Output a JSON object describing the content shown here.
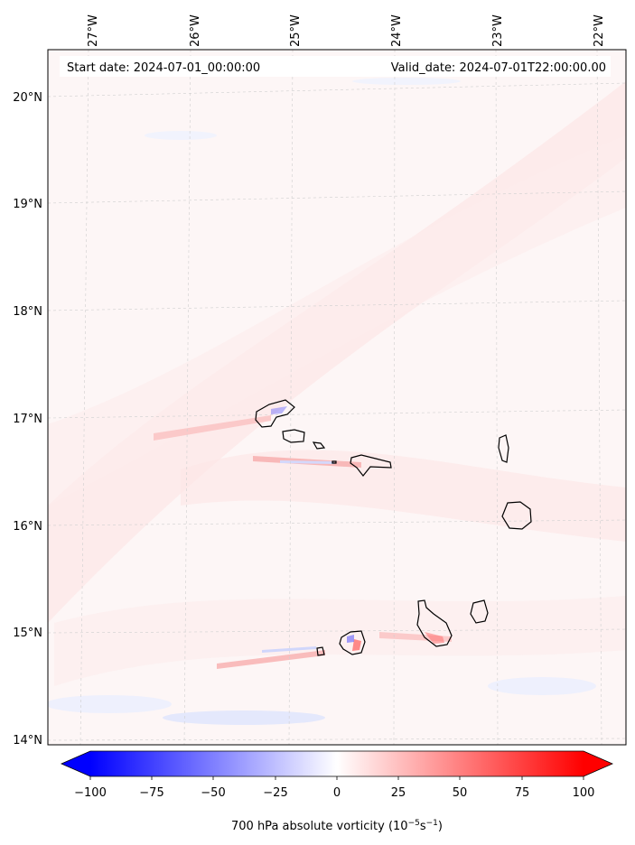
{
  "header": {
    "start_date": "Start date: 2024-07-01_00:00:00",
    "valid_date": "Valid_date: 2024-07-01T22:00:00.00"
  },
  "map": {
    "lon_labels": [
      "27°W",
      "26°W",
      "25°W",
      "24°W",
      "23°W",
      "22°W"
    ],
    "lat_labels": [
      "20°N",
      "19°N",
      "18°N",
      "17°N",
      "16°N",
      "15°N",
      "14°N"
    ],
    "colors": {
      "background_field": "#fdf5f5",
      "positive": "#ff0000",
      "negative": "#0000ff",
      "coastline": "#000000",
      "gridline": "#c8c8c8"
    }
  },
  "colorbar": {
    "title": "700 hPa absolute vorticity (10",
    "title_exp1": "−5",
    "title_mid": "s",
    "title_exp2": "−1",
    "title_end": ")",
    "ticks": [
      "−100",
      "−75",
      "−50",
      "−25",
      "0",
      "25",
      "50",
      "75",
      "100"
    ],
    "range": [
      -100,
      100
    ],
    "extend": "both",
    "cmap": "bwr"
  }
}
